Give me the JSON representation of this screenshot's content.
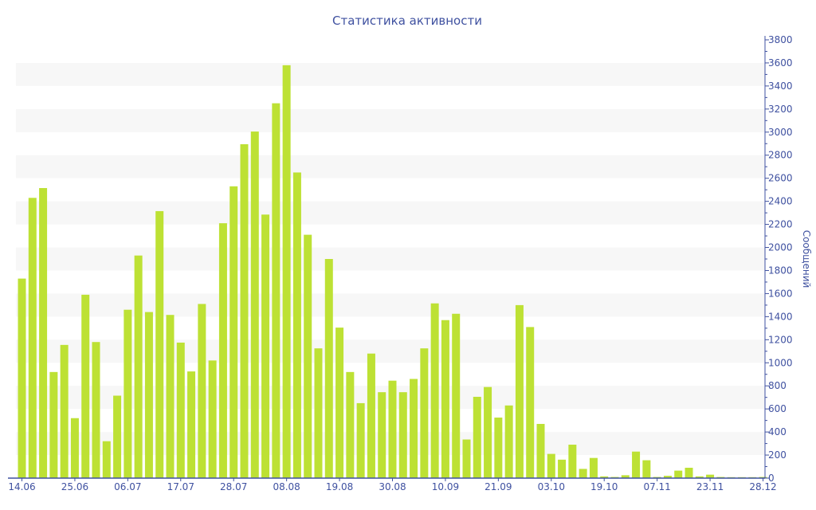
{
  "chart_data": {
    "type": "bar",
    "title": "Статистика активности",
    "xlabel": "",
    "ylabel": "Сообщений",
    "ylim": [
      0,
      3800
    ],
    "ytick_step": 200,
    "grid": "alternating horizontal bands",
    "y_axis_position": "right",
    "colors": {
      "bar": "#bde134",
      "axis": "#3f51a0",
      "band": "#f7f7f7"
    },
    "x_tick_labels": [
      {
        "index": 0,
        "label": "14.06"
      },
      {
        "index": 5,
        "label": "25.06"
      },
      {
        "index": 10,
        "label": "06.07"
      },
      {
        "index": 15,
        "label": "17.07"
      },
      {
        "index": 20,
        "label": "28.07"
      },
      {
        "index": 25,
        "label": "08.08"
      },
      {
        "index": 30,
        "label": "19.08"
      },
      {
        "index": 35,
        "label": "30.08"
      },
      {
        "index": 40,
        "label": "10.09"
      },
      {
        "index": 45,
        "label": "21.09"
      },
      {
        "index": 50,
        "label": "03.10"
      },
      {
        "index": 55,
        "label": "19.10"
      },
      {
        "index": 60,
        "label": "07.11"
      },
      {
        "index": 65,
        "label": "23.11"
      },
      {
        "index": 70,
        "label": "28.12"
      }
    ],
    "values": [
      1730,
      2430,
      2515,
      920,
      1155,
      520,
      1590,
      1180,
      320,
      715,
      1460,
      1930,
      1440,
      2315,
      1415,
      1175,
      925,
      1510,
      1020,
      2210,
      2530,
      2895,
      3005,
      2285,
      3250,
      3580,
      2650,
      2110,
      1125,
      1900,
      1305,
      920,
      650,
      1080,
      745,
      845,
      745,
      860,
      1125,
      1515,
      1370,
      1425,
      335,
      705,
      790,
      525,
      630,
      1500,
      1310,
      470,
      210,
      160,
      290,
      80,
      175,
      15,
      10,
      25,
      230,
      155,
      10,
      20,
      65,
      90,
      15,
      30,
      10,
      8,
      8,
      8,
      10
    ]
  }
}
